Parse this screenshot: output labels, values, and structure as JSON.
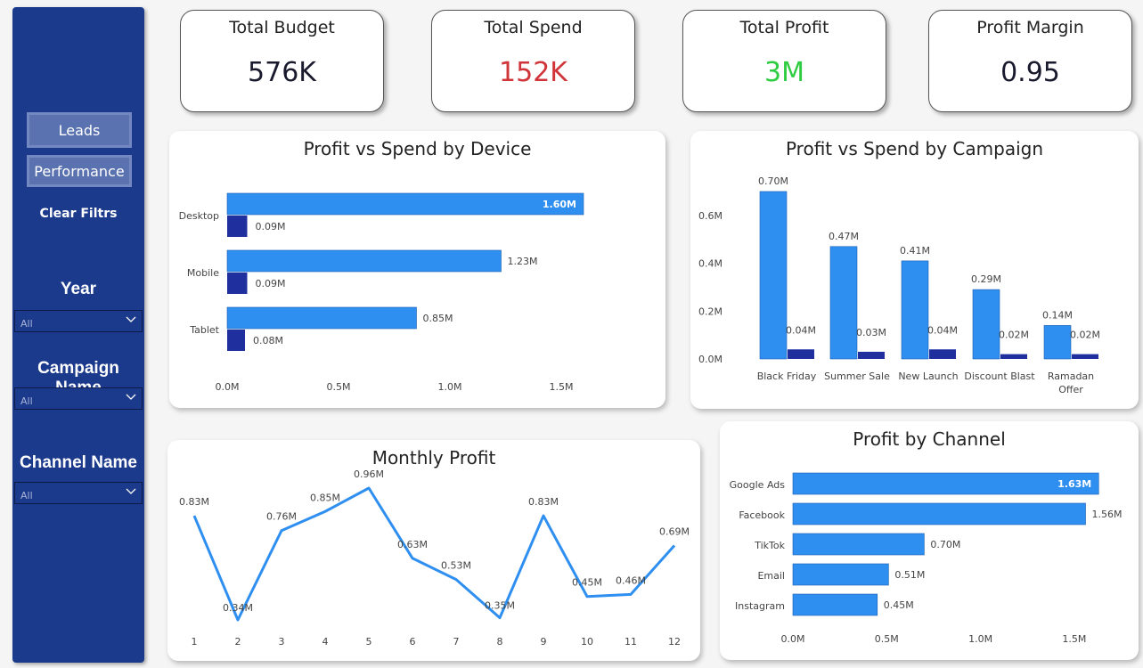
{
  "sidebar": {
    "buttons": {
      "leads": "Leads",
      "performance": "Performance"
    },
    "clear_filters": "Clear Filtrs",
    "slicers": [
      {
        "title": "Year",
        "value": "All"
      },
      {
        "title": "Campaign Name",
        "value": "All"
      },
      {
        "title": "Channel Name",
        "value": "All"
      }
    ]
  },
  "kpis": [
    {
      "label": "Total Budget",
      "value": "576K",
      "color": "#1a1a2e"
    },
    {
      "label": "Total Spend",
      "value": "152K",
      "color": "#d13438"
    },
    {
      "label": "Total Profit",
      "value": "3M",
      "color": "#2ecc40"
    },
    {
      "label": "Profit Margin",
      "value": "0.95",
      "color": "#1a1a2e"
    }
  ],
  "colors": {
    "profit": "#2e8ff0",
    "spend": "#1f2f9e",
    "line": "#2e8ff0",
    "sidebar": "#1c3a8c"
  },
  "chart_data": [
    {
      "id": "device",
      "type": "bar",
      "orientation": "horizontal",
      "title": "Profit vs Spend by Device",
      "categories": [
        "Desktop",
        "Mobile",
        "Tablet"
      ],
      "series": [
        {
          "values": [
            1.6,
            1.23,
            0.85
          ],
          "labels": [
            "1.60M",
            "1.23M",
            "0.85M"
          ]
        },
        {
          "values": [
            0.09,
            0.09,
            0.08
          ],
          "labels": [
            "0.09M",
            "0.09M",
            "0.08M"
          ]
        }
      ],
      "xlim": [
        0,
        1.7
      ],
      "xticks": [
        0,
        0.5,
        1.0,
        1.5
      ],
      "xtick_labels": [
        "0.0M",
        "0.5M",
        "1.0M",
        "1.5M"
      ],
      "grid": false
    },
    {
      "id": "campaign",
      "type": "bar",
      "orientation": "vertical",
      "title": "Profit vs Spend by Campaign",
      "categories": [
        "Black Friday",
        "Summer Sale",
        "New Launch",
        "Discount Blast",
        "Ramadan Offer"
      ],
      "series": [
        {
          "values": [
            0.7,
            0.47,
            0.41,
            0.29,
            0.14
          ],
          "labels": [
            "0.70M",
            "0.47M",
            "0.41M",
            "0.29M",
            "0.14M"
          ]
        },
        {
          "values": [
            0.04,
            0.03,
            0.04,
            0.02,
            0.02
          ],
          "labels": [
            "0.04M",
            "0.03M",
            "0.04M",
            "0.02M",
            "0.02M"
          ]
        }
      ],
      "ylim": [
        0,
        0.75
      ],
      "yticks": [
        0,
        0.2,
        0.4,
        0.6
      ],
      "ytick_labels": [
        "0.0M",
        "0.2M",
        "0.4M",
        "0.6M"
      ],
      "grid": false
    },
    {
      "id": "monthly",
      "type": "line",
      "title": "Monthly Profit",
      "x": [
        1,
        2,
        3,
        4,
        5,
        6,
        7,
        8,
        9,
        10,
        11,
        12
      ],
      "values": [
        0.83,
        0.34,
        0.76,
        0.85,
        0.96,
        0.63,
        0.53,
        0.35,
        0.83,
        0.45,
        0.46,
        0.69
      ],
      "labels": [
        "0.83M",
        "0.34M",
        "0.76M",
        "0.85M",
        "0.96M",
        "0.63M",
        "0.53M",
        "0.35M",
        "0.83M",
        "0.45M",
        "0.46M",
        "0.69M"
      ],
      "grid": false
    },
    {
      "id": "channel",
      "type": "bar",
      "orientation": "horizontal",
      "title": "Profit by Channel",
      "categories": [
        "Google Ads",
        "Facebook",
        "TikTok",
        "Email",
        "Instagram"
      ],
      "values": [
        1.63,
        1.56,
        0.7,
        0.51,
        0.45
      ],
      "labels": [
        "1.63M",
        "1.56M",
        "0.70M",
        "0.51M",
        "0.45M"
      ],
      "xlim": [
        0,
        1.7
      ],
      "xticks": [
        0,
        0.5,
        1.0,
        1.5
      ],
      "xtick_labels": [
        "0.0M",
        "0.5M",
        "1.0M",
        "1.5M"
      ],
      "grid": false
    }
  ]
}
